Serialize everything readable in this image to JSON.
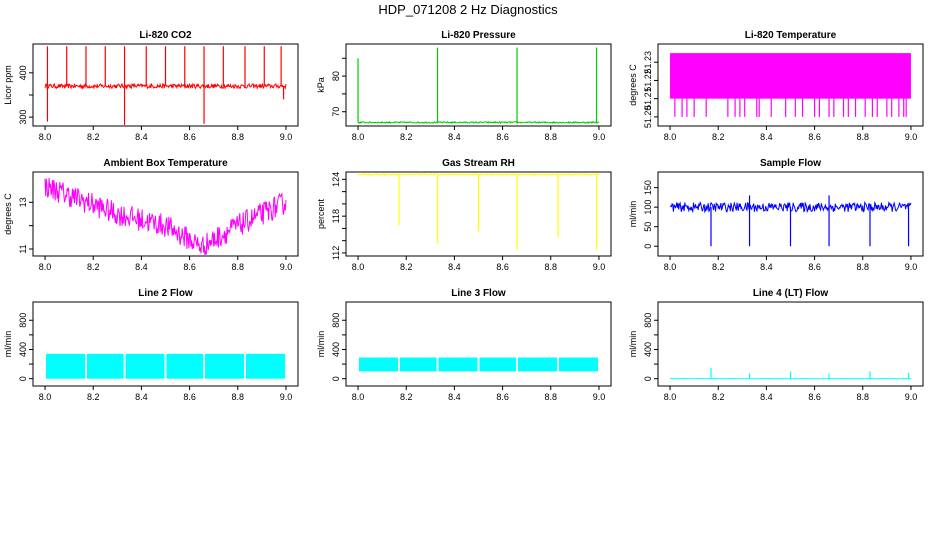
{
  "figure_title": "HDP_071208  2 Hz Diagnostics",
  "chart_data": [
    {
      "type": "line",
      "title": "Li-820 CO2",
      "ylabel": "Licor ppm",
      "color": "#ff0000",
      "xlim": [
        7.95,
        9.05
      ],
      "ylim": [
        280,
        465
      ],
      "xticks": [
        "8.0",
        "8.2",
        "8.4",
        "8.6",
        "8.8",
        "9.0"
      ],
      "yticks": [
        300,
        350,
        400
      ],
      "ytick_labels": [
        "300",
        "",
        "400"
      ],
      "baseline": 370,
      "noise": 5,
      "spikes": [
        {
          "x": 8.01,
          "y": 460
        },
        {
          "x": 8.01,
          "y": 290
        },
        {
          "x": 8.09,
          "y": 460
        },
        {
          "x": 8.17,
          "y": 460
        },
        {
          "x": 8.25,
          "y": 460
        },
        {
          "x": 8.33,
          "y": 460
        },
        {
          "x": 8.33,
          "y": 275
        },
        {
          "x": 8.42,
          "y": 460
        },
        {
          "x": 8.5,
          "y": 460
        },
        {
          "x": 8.58,
          "y": 460
        },
        {
          "x": 8.66,
          "y": 460
        },
        {
          "x": 8.66,
          "y": 285
        },
        {
          "x": 8.74,
          "y": 460
        },
        {
          "x": 8.83,
          "y": 460
        },
        {
          "x": 8.91,
          "y": 460
        },
        {
          "x": 8.98,
          "y": 460
        },
        {
          "x": 8.99,
          "y": 340
        }
      ]
    },
    {
      "type": "line",
      "title": "Li-820 Pressure",
      "ylabel": "kPa",
      "color": "#00cc00",
      "xlim": [
        7.95,
        9.05
      ],
      "ylim": [
        66,
        89
      ],
      "xticks": [
        "8.0",
        "8.2",
        "8.4",
        "8.6",
        "8.8",
        "9.0"
      ],
      "yticks": [
        70,
        75,
        80,
        85
      ],
      "ytick_labels": [
        "70",
        "",
        "80",
        ""
      ],
      "baseline": 67,
      "noise": 0.2,
      "spikes": [
        {
          "x": 8.0,
          "y": 85
        },
        {
          "x": 8.33,
          "y": 88
        },
        {
          "x": 8.66,
          "y": 88
        },
        {
          "x": 8.99,
          "y": 88
        }
      ]
    },
    {
      "type": "band",
      "title": "Li-820 Temperature",
      "ylabel": "degrees C",
      "color": "#ff00ff",
      "xlim": [
        7.95,
        9.05
      ],
      "ylim": [
        51.195,
        51.24
      ],
      "xticks": [
        "8.0",
        "8.2",
        "8.4",
        "8.6",
        "8.8",
        "9.0"
      ],
      "yticks": [
        51.2,
        51.21,
        51.22,
        51.23
      ],
      "ytick_labels": [
        "51.20",
        "51.21",
        "51.22",
        "51.23"
      ],
      "band_low": 51.21,
      "band_high": 51.235,
      "drop_to": 51.2,
      "drops": [
        8.02,
        8.05,
        8.07,
        8.1,
        8.15,
        8.24,
        8.27,
        8.29,
        8.31,
        8.36,
        8.37,
        8.42,
        8.48,
        8.52,
        8.55,
        8.6,
        8.62,
        8.66,
        8.68,
        8.72,
        8.74,
        8.77,
        8.81,
        8.84,
        8.86,
        8.9,
        8.92,
        8.95,
        8.97,
        8.98
      ]
    },
    {
      "type": "line",
      "title": "Ambient Box Temperature",
      "ylabel": "degrees C",
      "color": "#ff00ff",
      "xlim": [
        7.95,
        9.05
      ],
      "ylim": [
        10.7,
        14.3
      ],
      "xticks": [
        "8.0",
        "8.2",
        "8.4",
        "8.6",
        "8.8",
        "9.0"
      ],
      "yticks": [
        11,
        12,
        13
      ],
      "ytick_labels": [
        "11",
        "",
        "13"
      ],
      "trend": [
        {
          "x": 8.0,
          "y": 13.7
        },
        {
          "x": 8.3,
          "y": 12.5
        },
        {
          "x": 8.5,
          "y": 12.0
        },
        {
          "x": 8.65,
          "y": 11.1
        },
        {
          "x": 8.8,
          "y": 12.0
        },
        {
          "x": 9.0,
          "y": 13.0
        }
      ],
      "noise": 0.5
    },
    {
      "type": "line",
      "title": "Gas Stream RH",
      "ylabel": "percent",
      "color": "#ffff00",
      "xlim": [
        7.95,
        9.05
      ],
      "ylim": [
        111.5,
        125.2
      ],
      "xticks": [
        "8.0",
        "8.2",
        "8.4",
        "8.6",
        "8.8",
        "9.0"
      ],
      "yticks": [
        112,
        114,
        116,
        118,
        120,
        122,
        124
      ],
      "ytick_labels": [
        "112",
        "",
        "",
        "118",
        "",
        "",
        "124"
      ],
      "baseline": 124.8,
      "noise": 0.1,
      "spikes": [
        {
          "x": 8.17,
          "y": 116.5
        },
        {
          "x": 8.33,
          "y": 113.5
        },
        {
          "x": 8.5,
          "y": 115.5
        },
        {
          "x": 8.66,
          "y": 112.5
        },
        {
          "x": 8.83,
          "y": 114.5
        },
        {
          "x": 8.99,
          "y": 112.5
        }
      ]
    },
    {
      "type": "line",
      "title": "Sample Flow",
      "ylabel": "ml/min",
      "color": "#0000ff",
      "xlim": [
        7.95,
        9.05
      ],
      "ylim": [
        -25,
        190
      ],
      "xticks": [
        "8.0",
        "8.2",
        "8.4",
        "8.6",
        "8.8",
        "9.0"
      ],
      "yticks": [
        0,
        50,
        100,
        150
      ],
      "ytick_labels": [
        "0",
        "50",
        "100",
        "150"
      ],
      "baseline": 100,
      "noise": 12,
      "spikes": [
        {
          "x": 8.17,
          "y": 0
        },
        {
          "x": 8.33,
          "y": 0
        },
        {
          "x": 8.33,
          "y": 130
        },
        {
          "x": 8.5,
          "y": 0
        },
        {
          "x": 8.66,
          "y": 0
        },
        {
          "x": 8.66,
          "y": 130
        },
        {
          "x": 8.83,
          "y": 0
        },
        {
          "x": 8.99,
          "y": 0
        }
      ]
    },
    {
      "type": "band",
      "title": "Line 2 Flow",
      "ylabel": "ml/min",
      "color": "#00ffff",
      "xlim": [
        7.95,
        9.05
      ],
      "ylim": [
        -100,
        1050
      ],
      "xticks": [
        "8.0",
        "8.2",
        "8.4",
        "8.6",
        "8.8",
        "9.0"
      ],
      "yticks": [
        0,
        200,
        400,
        600,
        800
      ],
      "ytick_labels": [
        "0",
        "",
        "400",
        "",
        "800"
      ],
      "band_low": 0,
      "band_high": 340,
      "gaps": [
        8.17,
        8.33,
        8.5,
        8.66,
        8.83
      ]
    },
    {
      "type": "band",
      "title": "Line 3 Flow",
      "ylabel": "ml/min",
      "color": "#00ffff",
      "xlim": [
        7.95,
        9.05
      ],
      "ylim": [
        -100,
        1050
      ],
      "xticks": [
        "8.0",
        "8.2",
        "8.4",
        "8.6",
        "8.8",
        "9.0"
      ],
      "yticks": [
        0,
        200,
        400,
        600,
        800
      ],
      "ytick_labels": [
        "0",
        "",
        "400",
        "",
        "800"
      ],
      "band_low": 100,
      "band_high": 290,
      "gaps": [
        8.17,
        8.33,
        8.5,
        8.66,
        8.83
      ]
    },
    {
      "type": "line",
      "title": "Line 4 (LT) Flow",
      "ylabel": "ml/min",
      "color": "#00ffff",
      "xlim": [
        7.95,
        9.05
      ],
      "ylim": [
        -100,
        1050
      ],
      "xticks": [
        "8.0",
        "8.2",
        "8.4",
        "8.6",
        "8.8",
        "9.0"
      ],
      "yticks": [
        0,
        200,
        400,
        600,
        800
      ],
      "ytick_labels": [
        "0",
        "",
        "400",
        "",
        "800"
      ],
      "baseline": 0,
      "noise": 3,
      "spikes": [
        {
          "x": 8.17,
          "y": 150
        },
        {
          "x": 8.33,
          "y": 70
        },
        {
          "x": 8.5,
          "y": 100
        },
        {
          "x": 8.66,
          "y": 70
        },
        {
          "x": 8.83,
          "y": 100
        },
        {
          "x": 8.99,
          "y": 80
        }
      ]
    }
  ]
}
